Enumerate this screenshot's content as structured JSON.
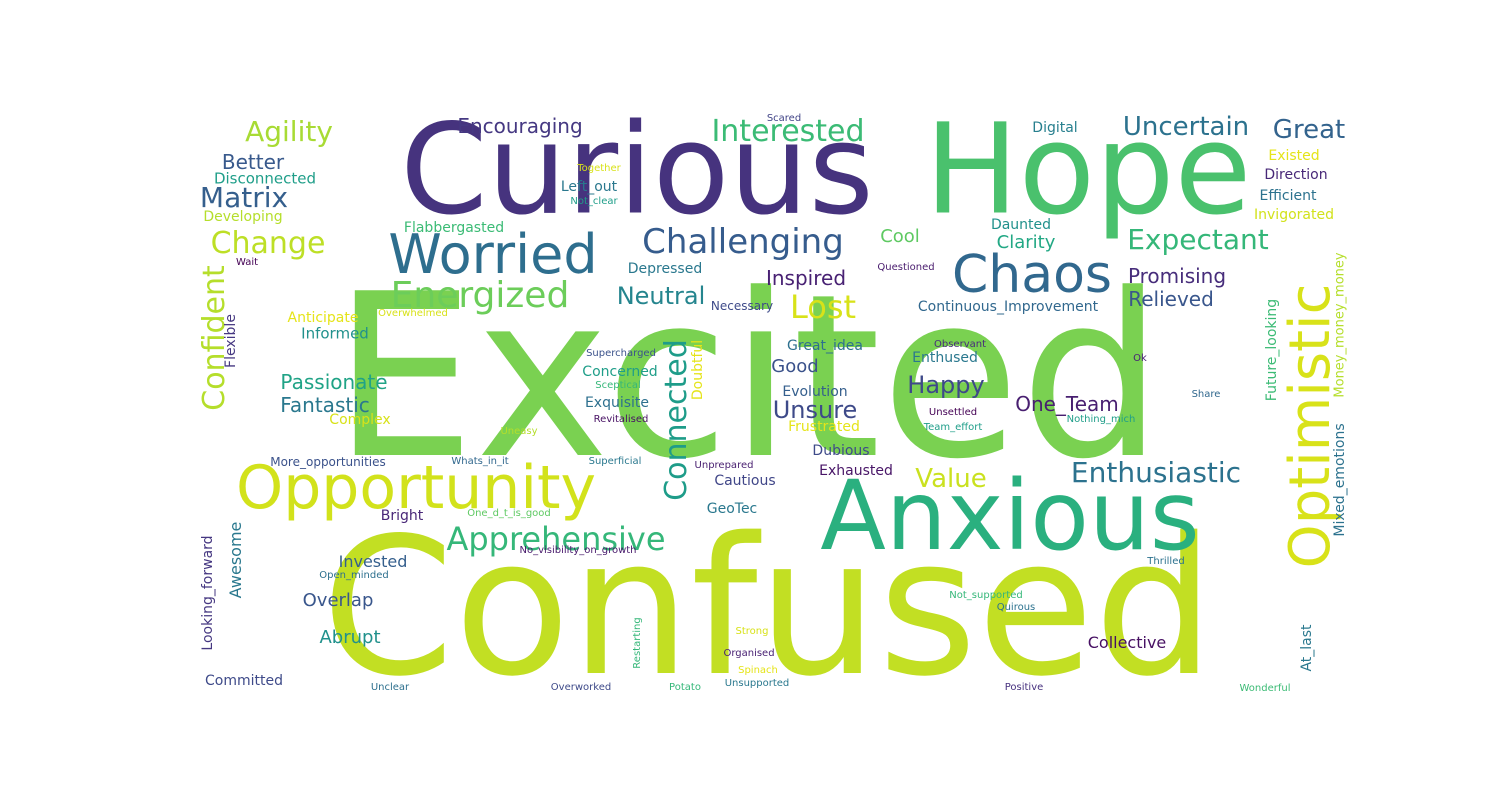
{
  "word_cloud": {
    "words": [
      {
        "text": "Excited",
        "color": "#7ad151"
      },
      {
        "text": "Confused",
        "color": "#c2df23"
      },
      {
        "text": "Curious",
        "color": "#46337e"
      },
      {
        "text": "Hope",
        "color": "#4ac16d"
      },
      {
        "text": "Anxious",
        "color": "#2ab07f"
      },
      {
        "text": "Opportunity",
        "color": "#d2e21b"
      },
      {
        "text": "Optimistic",
        "color": "#d8e219"
      },
      {
        "text": "Worried",
        "color": "#2e6e8e"
      },
      {
        "text": "Chaos",
        "color": "#31688e"
      },
      {
        "text": "Challenging",
        "color": "#365c8d"
      },
      {
        "text": "Energized",
        "color": "#6ccd5a"
      },
      {
        "text": "Enthusiastic",
        "color": "#2c728e"
      },
      {
        "text": "Apprehensive",
        "color": "#35b779"
      },
      {
        "text": "Connected",
        "color": "#1e9c89"
      },
      {
        "text": "Confident",
        "color": "#b5de2b"
      },
      {
        "text": "Interested",
        "color": "#3bbb75"
      },
      {
        "text": "Uncertain",
        "color": "#2c728e"
      },
      {
        "text": "Great",
        "color": "#33638d"
      },
      {
        "text": "Expectant",
        "color": "#35b779"
      },
      {
        "text": "Change",
        "color": "#bddf26"
      },
      {
        "text": "Agility",
        "color": "#a8db34"
      },
      {
        "text": "Matrix",
        "color": "#355f8d"
      },
      {
        "text": "Lost",
        "color": "#d8e219"
      },
      {
        "text": "Value",
        "color": "#cae11f"
      },
      {
        "text": "Encouraging",
        "color": "#453882"
      },
      {
        "text": "Better",
        "color": "#38598c"
      },
      {
        "text": "Neutral",
        "color": "#25858e"
      },
      {
        "text": "Promising",
        "color": "#472d7b"
      },
      {
        "text": "Relieved",
        "color": "#39568c"
      },
      {
        "text": "Happy",
        "color": "#3e4989"
      },
      {
        "text": "Unsure",
        "color": "#3e4a89"
      },
      {
        "text": "One_Team",
        "color": "#481f70"
      },
      {
        "text": "Passionate",
        "color": "#20a386"
      },
      {
        "text": "Fantastic",
        "color": "#2a788e"
      },
      {
        "text": "Inspired",
        "color": "#482173"
      },
      {
        "text": "Cool",
        "color": "#5ec962"
      },
      {
        "text": "Clarity",
        "color": "#22a884"
      },
      {
        "text": "Good",
        "color": "#3b528b"
      },
      {
        "text": "Disconnected",
        "color": "#1f9e89"
      },
      {
        "text": "Developing",
        "color": "#b5de2b"
      },
      {
        "text": "Digital",
        "color": "#277f8e"
      },
      {
        "text": "Existed",
        "color": "#e5e419"
      },
      {
        "text": "Direction",
        "color": "#482878"
      },
      {
        "text": "Efficient",
        "color": "#2c728e"
      },
      {
        "text": "Invigorated",
        "color": "#d2e21b"
      },
      {
        "text": "Flabbergasted",
        "color": "#3bbb75"
      },
      {
        "text": "Daunted",
        "color": "#21918c"
      },
      {
        "text": "Left_out",
        "color": "#2a788e"
      },
      {
        "text": "Not_clear",
        "color": "#1f9e89"
      },
      {
        "text": "Together",
        "color": "#d8e219"
      },
      {
        "text": "Scared",
        "color": "#414487"
      },
      {
        "text": "Wait",
        "color": "#440154"
      },
      {
        "text": "Depressed",
        "color": "#2a788e"
      },
      {
        "text": "Questioned",
        "color": "#481b6d"
      },
      {
        "text": "Money_money_money",
        "color": "#b5de2b"
      },
      {
        "text": "Future_looking",
        "color": "#3bbb75"
      },
      {
        "text": "Mixed_emotions",
        "color": "#2c728e"
      },
      {
        "text": "Flexible",
        "color": "#453781"
      },
      {
        "text": "Anticipate",
        "color": "#e5e419"
      },
      {
        "text": "Overwhelmed",
        "color": "#d8e219"
      },
      {
        "text": "Informed",
        "color": "#21918c"
      },
      {
        "text": "Necessary",
        "color": "#3e4a89"
      },
      {
        "text": "Continuous_Improvement",
        "color": "#31688e"
      },
      {
        "text": "Great_idea",
        "color": "#2d708e"
      },
      {
        "text": "Observant",
        "color": "#472c7a"
      },
      {
        "text": "Supercharged",
        "color": "#3b528b"
      },
      {
        "text": "Concerned",
        "color": "#1f9e89"
      },
      {
        "text": "Doubtful",
        "color": "#e5e419"
      },
      {
        "text": "Enthused",
        "color": "#2a788e"
      },
      {
        "text": "Ok",
        "color": "#482475"
      },
      {
        "text": "Sceptical",
        "color": "#35b779"
      },
      {
        "text": "Evolution",
        "color": "#355f8d"
      },
      {
        "text": "Share",
        "color": "#31688e"
      },
      {
        "text": "Complex",
        "color": "#d8e219"
      },
      {
        "text": "Exquisite",
        "color": "#2d708e"
      },
      {
        "text": "Unsettled",
        "color": "#440154"
      },
      {
        "text": "Nothing_mich",
        "color": "#1f9e89"
      },
      {
        "text": "Team_effort",
        "color": "#1f9e89"
      },
      {
        "text": "Revitalised",
        "color": "#471063"
      },
      {
        "text": "Frustrated",
        "color": "#e5e419"
      },
      {
        "text": "Uneasy",
        "color": "#b5de2b"
      },
      {
        "text": "Dubious",
        "color": "#3e4a89"
      },
      {
        "text": "More_opportunities",
        "color": "#3b528b"
      },
      {
        "text": "Whats_in_it",
        "color": "#31688e"
      },
      {
        "text": "Superficial",
        "color": "#2a788e"
      },
      {
        "text": "Unprepared",
        "color": "#481f70"
      },
      {
        "text": "Exhausted",
        "color": "#481567"
      },
      {
        "text": "Cautious",
        "color": "#404688"
      },
      {
        "text": "Looking_forward",
        "color": "#453781"
      },
      {
        "text": "Awesome",
        "color": "#2a788e"
      },
      {
        "text": "Bright",
        "color": "#482677"
      },
      {
        "text": "One_d_t_is_good",
        "color": "#5ec962"
      },
      {
        "text": "GeoTec",
        "color": "#2a788e"
      },
      {
        "text": "No_visibility_on_growth",
        "color": "#481a6c"
      },
      {
        "text": "Invested",
        "color": "#355f8d"
      },
      {
        "text": "Open_minded",
        "color": "#2d708e"
      },
      {
        "text": "Overlap",
        "color": "#39568c"
      },
      {
        "text": "Thrilled",
        "color": "#2c728e"
      },
      {
        "text": "Not_supported",
        "color": "#35b779"
      },
      {
        "text": "Quirous",
        "color": "#2c728e"
      },
      {
        "text": "At_last",
        "color": "#2a788e"
      },
      {
        "text": "Abrupt",
        "color": "#21918c"
      },
      {
        "text": "Restarting",
        "color": "#35b779"
      },
      {
        "text": "Strong",
        "color": "#d8e219"
      },
      {
        "text": "Organised",
        "color": "#482173"
      },
      {
        "text": "Collective",
        "color": "#471063"
      },
      {
        "text": "Spinach",
        "color": "#e5e419"
      },
      {
        "text": "Committed",
        "color": "#3e4a89"
      },
      {
        "text": "Unclear",
        "color": "#2d708e"
      },
      {
        "text": "Overworked",
        "color": "#3e4a89"
      },
      {
        "text": "Potato",
        "color": "#35b779"
      },
      {
        "text": "Unsupported",
        "color": "#2a788e"
      },
      {
        "text": "Positive",
        "color": "#46307e"
      },
      {
        "text": "Wonderful",
        "color": "#3bbb75"
      }
    ]
  }
}
